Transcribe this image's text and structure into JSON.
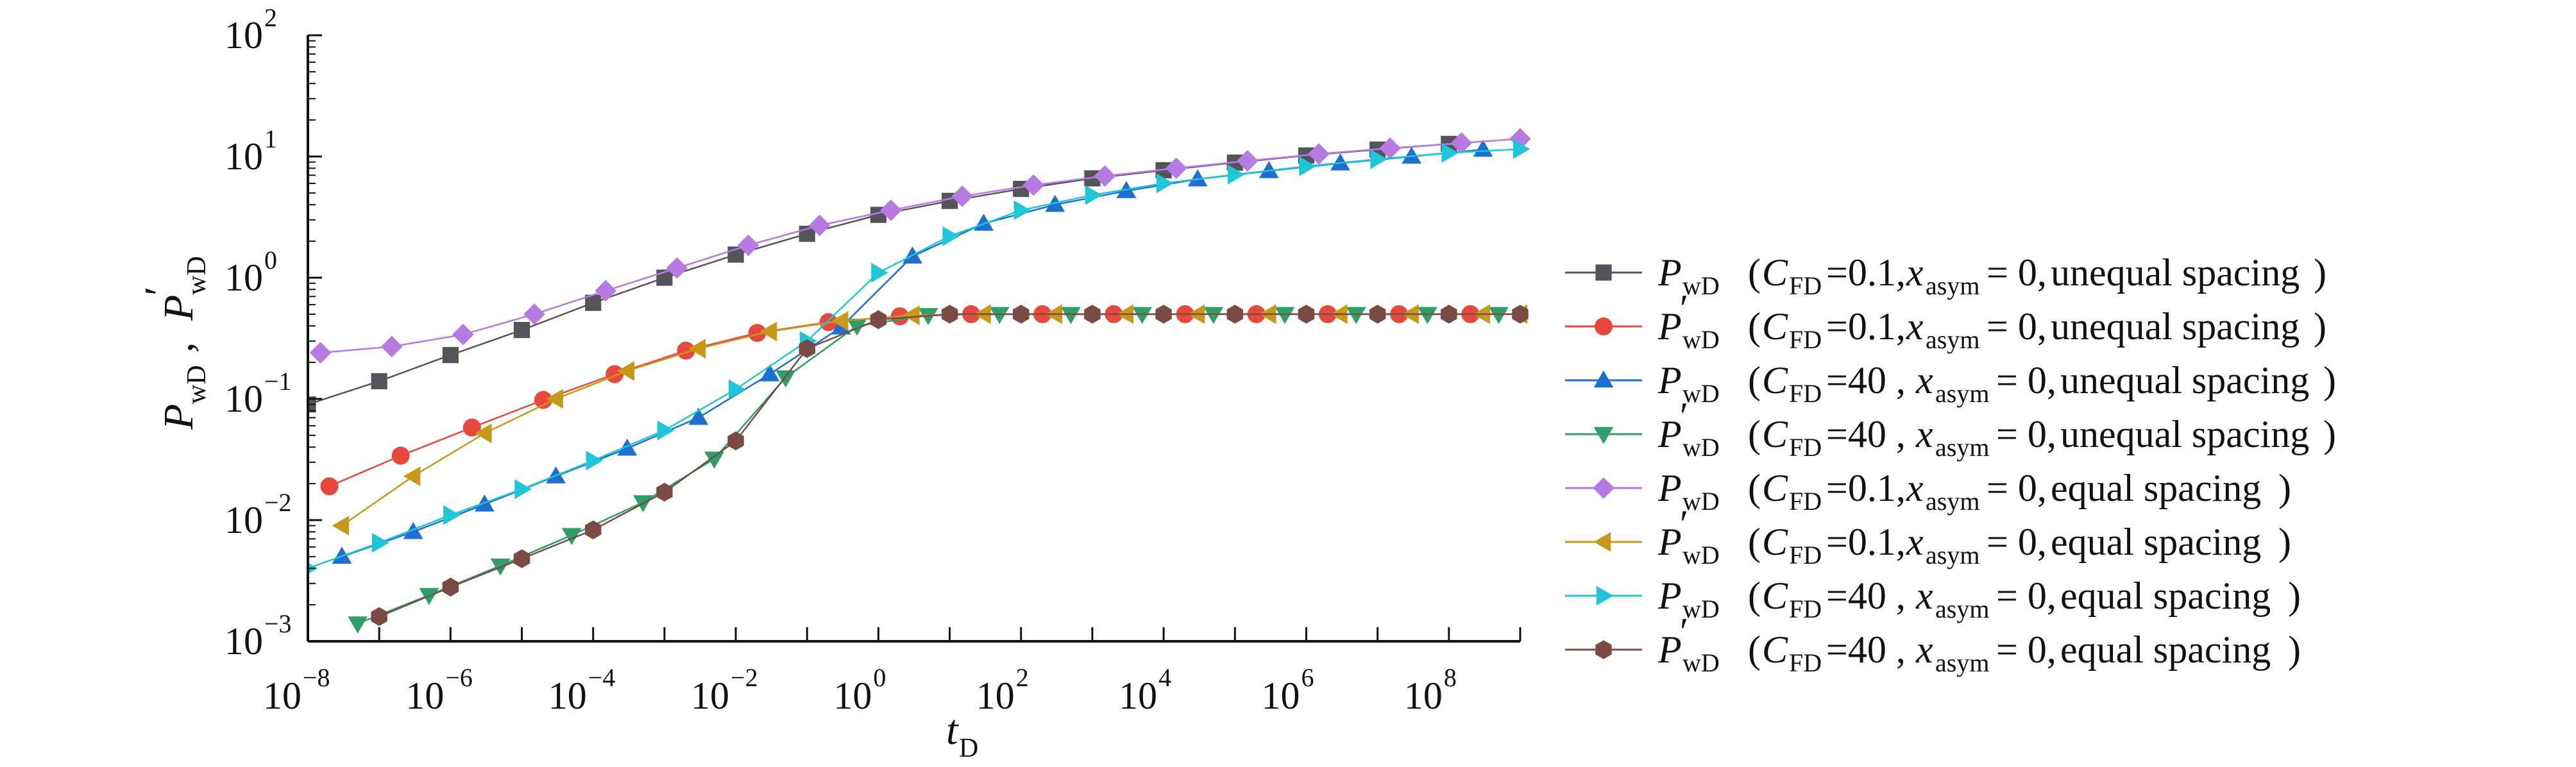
{
  "chart_data": {
    "type": "scatter",
    "xscale": "log",
    "yscale": "log",
    "xlim": [
      1e-08,
      1000000000.0
    ],
    "ylim": [
      0.001,
      100
    ],
    "xlabel": "t_D",
    "ylabel": "P_wD , P'_wD",
    "grid": false,
    "legend_position": "right",
    "xticks": [
      {
        "value": 1e-08,
        "base": "10",
        "exp": "−8"
      },
      {
        "value": 1e-06,
        "base": "10",
        "exp": "−6"
      },
      {
        "value": 0.0001,
        "base": "10",
        "exp": "−4"
      },
      {
        "value": 0.01,
        "base": "10",
        "exp": "−2"
      },
      {
        "value": 1,
        "base": "10",
        "exp": "0"
      },
      {
        "value": 100.0,
        "base": "10",
        "exp": "2"
      },
      {
        "value": 10000.0,
        "base": "10",
        "exp": "4"
      },
      {
        "value": 1000000.0,
        "base": "10",
        "exp": "6"
      },
      {
        "value": 100000000.0,
        "base": "10",
        "exp": "8"
      }
    ],
    "yticks": [
      {
        "value": 0.001,
        "base": "10",
        "exp": "−3"
      },
      {
        "value": 0.01,
        "base": "10",
        "exp": "−2"
      },
      {
        "value": 0.1,
        "base": "10",
        "exp": "−1"
      },
      {
        "value": 1,
        "base": "10",
        "exp": "0"
      },
      {
        "value": 10,
        "base": "10",
        "exp": "1"
      },
      {
        "value": 100,
        "base": "10",
        "exp": "2"
      }
    ],
    "series": [
      {
        "name": "P_wD (C_FD=0.1, x_asym = 0, unequal spacing )",
        "symbol": "P",
        "prime": false,
        "cfd": "0.1",
        "spacing": "unequal spacing",
        "color": "#55545a",
        "marker": "square",
        "x": [
          1e-08,
          1e-07,
          1e-06,
          1e-05,
          0.0001,
          0.001,
          0.01,
          0.1,
          1,
          10,
          100.0,
          1000.0,
          10000.0,
          100000.0,
          1000000.0,
          10000000.0,
          100000000.0
        ],
        "y": [
          0.09,
          0.14,
          0.23,
          0.37,
          0.62,
          1.0,
          1.55,
          2.3,
          3.3,
          4.3,
          5.4,
          6.6,
          7.7,
          8.9,
          10.2,
          11.4,
          12.7
        ]
      },
      {
        "name": "P'_wD (C_FD=0.1, x_asym = 0, unequal spacing )",
        "symbol": "P",
        "prime": true,
        "cfd": "0.1",
        "spacing": "unequal spacing",
        "color": "#e8473d",
        "marker": "circle",
        "x": [
          2e-08,
          2e-07,
          2e-06,
          2e-05,
          0.0002,
          0.002,
          0.02,
          0.2,
          2,
          20,
          200,
          2000.0,
          20000.0,
          200000.0,
          2000000.0,
          20000000.0,
          200000000.0
        ],
        "y": [
          0.019,
          0.034,
          0.058,
          0.098,
          0.16,
          0.25,
          0.35,
          0.43,
          0.48,
          0.5,
          0.5,
          0.5,
          0.5,
          0.5,
          0.5,
          0.5,
          0.5
        ]
      },
      {
        "name": "P_wD (C_FD=40 , x_asym = 0, unequal spacing )",
        "symbol": "P",
        "prime": false,
        "cfd": "40",
        "spacing": "unequal spacing",
        "color": "#1f6fd0",
        "marker": "triangle-up",
        "x": [
          3e-08,
          3e-07,
          3e-06,
          3e-05,
          0.0003,
          0.003,
          0.03,
          0.3,
          3,
          30,
          300,
          3000.0,
          30000.0,
          300000.0,
          3000000.0,
          30000000.0,
          300000000.0
        ],
        "y": [
          0.005,
          0.008,
          0.0135,
          0.023,
          0.039,
          0.07,
          0.16,
          0.39,
          1.5,
          2.8,
          4.0,
          5.2,
          6.5,
          7.6,
          8.8,
          10.0,
          11.4
        ]
      },
      {
        "name": "P'_wD (C_FD=40 , x_asym = 0, unequal spacing )",
        "symbol": "P",
        "prime": true,
        "cfd": "40",
        "spacing": "unequal spacing",
        "color": "#2e9e6a",
        "marker": "triangle-down",
        "x": [
          5e-08,
          5e-07,
          5e-06,
          5e-05,
          0.0005,
          0.005,
          0.05,
          0.5,
          5,
          50,
          500,
          5000.0,
          50000.0,
          500000.0,
          5000000.0,
          50000000.0,
          500000000.0
        ],
        "y": [
          0.0014,
          0.0024,
          0.0042,
          0.0075,
          0.014,
          0.032,
          0.15,
          0.4,
          0.49,
          0.5,
          0.5,
          0.5,
          0.5,
          0.5,
          0.5,
          0.5,
          0.5
        ]
      },
      {
        "name": "P_wD (C_FD=0.1, x_asym = 0, equal spacing )",
        "symbol": "P",
        "prime": false,
        "cfd": "0.1",
        "spacing": "equal spacing",
        "color": "#b77ae3",
        "marker": "diamond",
        "x": [
          1.5e-08,
          1.5e-07,
          1.5e-06,
          1.5e-05,
          0.00015,
          0.0015,
          0.015,
          0.15,
          1.5,
          15,
          150,
          1500.0,
          15000.0,
          150000.0,
          1500000.0,
          15000000.0,
          150000000.0,
          1000000000.0
        ],
        "y": [
          0.24,
          0.27,
          0.34,
          0.5,
          0.78,
          1.2,
          1.85,
          2.7,
          3.6,
          4.7,
          5.8,
          6.9,
          8.0,
          9.2,
          10.5,
          11.7,
          12.9,
          14.0
        ]
      },
      {
        "name": "P'_wD (C_FD=0.1, x_asym = 0, equal spacing )",
        "symbol": "P",
        "prime": true,
        "cfd": "0.1",
        "spacing": "equal spacing",
        "color": "#c8981a",
        "marker": "triangle-left",
        "x": [
          3e-08,
          3e-07,
          3e-06,
          3e-05,
          0.0003,
          0.003,
          0.03,
          0.3,
          3,
          30,
          300,
          3000.0,
          30000.0,
          300000.0,
          3000000.0,
          30000000.0,
          300000000.0,
          1000000000.0
        ],
        "y": [
          0.009,
          0.023,
          0.052,
          0.1,
          0.17,
          0.26,
          0.36,
          0.44,
          0.49,
          0.5,
          0.5,
          0.5,
          0.5,
          0.5,
          0.5,
          0.5,
          0.5,
          0.5
        ]
      },
      {
        "name": "P_wD (C_FD=40 , x_asym = 0, equal spacing )",
        "symbol": "P",
        "prime": false,
        "cfd": "40",
        "spacing": "equal spacing",
        "color": "#1fc6d8",
        "marker": "triangle-right",
        "x": [
          1e-08,
          1e-07,
          1e-06,
          1e-05,
          0.0001,
          0.001,
          0.01,
          0.1,
          1,
          10,
          100.0,
          1000.0,
          10000.0,
          100000.0,
          1000000.0,
          10000000.0,
          100000000.0,
          1000000000.0
        ],
        "y": [
          0.004,
          0.0065,
          0.011,
          0.018,
          0.031,
          0.055,
          0.12,
          0.3,
          1.1,
          2.2,
          3.6,
          4.8,
          6.0,
          7.1,
          8.3,
          9.5,
          10.7,
          11.5
        ]
      },
      {
        "name": "P'_wD (C_FD=40 , x_asym = 0, equal spacing )",
        "symbol": "P",
        "prime": true,
        "cfd": "40",
        "spacing": "equal spacing",
        "color": "#7a4a45",
        "marker": "hexagon",
        "x": [
          1e-07,
          1e-06,
          1e-05,
          0.0001,
          0.001,
          0.01,
          0.1,
          1,
          10,
          100,
          1000.0,
          10000.0,
          100000.0,
          1000000.0,
          10000000.0,
          100000000.0,
          1000000000.0
        ],
        "y": [
          0.0016,
          0.0028,
          0.0048,
          0.0083,
          0.017,
          0.045,
          0.26,
          0.45,
          0.5,
          0.5,
          0.5,
          0.5,
          0.5,
          0.5,
          0.5,
          0.5,
          0.5
        ]
      }
    ]
  },
  "legend": {
    "p_symbol": "P",
    "sub_wd": "wD",
    "prime_mark": "′",
    "c_symbol": "C",
    "sub_fd": "FD",
    "x_symbol": "x",
    "sub_asym": "asym",
    "asym_value": "= 0,",
    "open_paren": "(",
    "close_paren": ")"
  },
  "axes": {
    "x_label_main": "t",
    "x_label_sub": "D",
    "y_label_p": "P",
    "y_label_sub": "wD",
    "y_label_sep": " , ",
    "y_label_prime": "′"
  }
}
